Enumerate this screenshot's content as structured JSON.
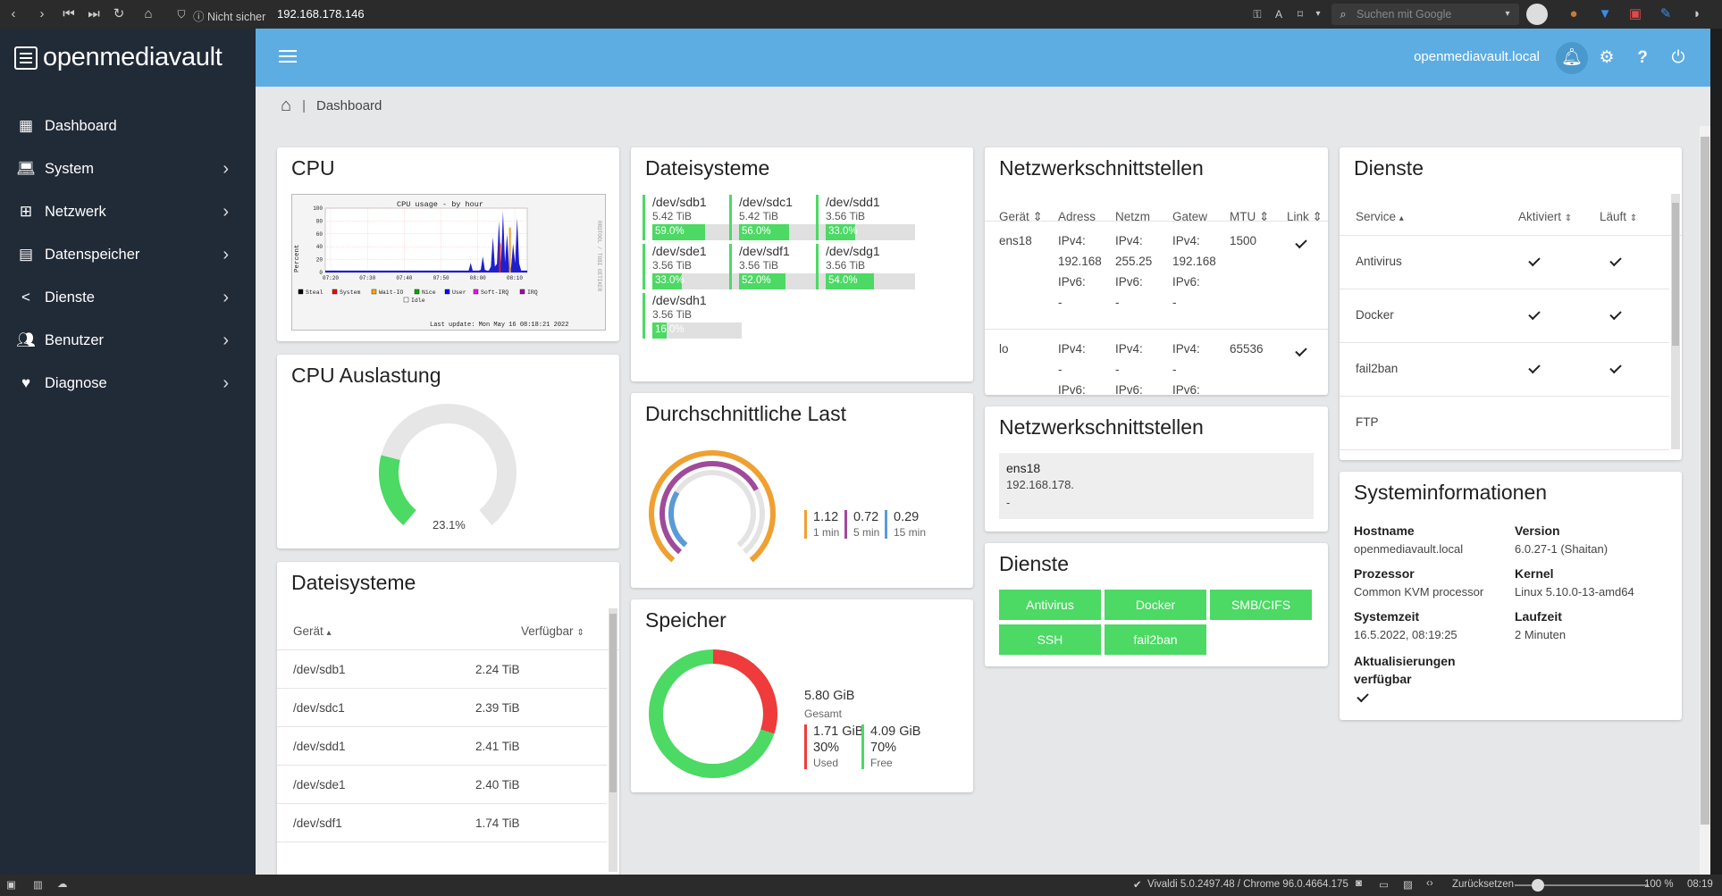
{
  "browser": {
    "security_label": "Nicht sicher",
    "url": "192.168.178.146",
    "search_placeholder": "Suchen mit Google",
    "status_version": "Vivaldi 5.0.2497.48 / Chrome 96.0.4664.175",
    "reset_label": "Zurücksetzen",
    "zoom": "100 %",
    "clock": "08:19"
  },
  "app": {
    "brand": "openmediavault",
    "hostname": "openmediavault.local"
  },
  "sidebar": {
    "items": [
      {
        "label": "Dashboard",
        "icon": "grid-icon"
      },
      {
        "label": "System",
        "icon": "laptop-icon"
      },
      {
        "label": "Netzwerk",
        "icon": "network-icon"
      },
      {
        "label": "Datenspeicher",
        "icon": "storage-icon"
      },
      {
        "label": "Dienste",
        "icon": "share-icon"
      },
      {
        "label": "Benutzer",
        "icon": "users-icon"
      },
      {
        "label": "Diagnose",
        "icon": "heartbeat-icon"
      }
    ]
  },
  "breadcrumb": {
    "current": "Dashboard"
  },
  "cpu": {
    "title": "CPU",
    "graph_title": "CPU usage - by hour",
    "ylabel": "Percent",
    "yticks": [
      "100",
      "80",
      "60",
      "40",
      "20",
      "0"
    ],
    "xticks": [
      "07:20",
      "07:30",
      "07:40",
      "07:50",
      "08:00",
      "08:10"
    ],
    "legend": [
      "Steal",
      "System",
      "Wait-IO",
      "Nice",
      "User",
      "Soft-IRQ",
      "IRQ",
      "Idle"
    ],
    "legend_colors": [
      "#000000",
      "#ff0000",
      "#ffaa00",
      "#00aa00",
      "#0000ff",
      "#ff00ff",
      "#aa00aa",
      "#ffffff"
    ],
    "last_update": "Last update: Mon May 16 08:18:21 2022",
    "side_label": "RRDTOOL / TOBI OETIKER"
  },
  "cpu_load": {
    "title": "CPU Auslastung",
    "value": "23.1%",
    "fraction": 0.231
  },
  "fs_table": {
    "title": "Dateisysteme",
    "col_device": "Gerät",
    "col_avail": "Verfügbar",
    "rows": [
      {
        "device": "/dev/sdb1",
        "avail": "2.24 TiB"
      },
      {
        "device": "/dev/sdc1",
        "avail": "2.39 TiB"
      },
      {
        "device": "/dev/sdd1",
        "avail": "2.41 TiB"
      },
      {
        "device": "/dev/sde1",
        "avail": "2.40 TiB"
      },
      {
        "device": "/dev/sdf1",
        "avail": "1.74 TiB"
      }
    ]
  },
  "fs_tiles": {
    "title": "Dateisysteme",
    "items": [
      {
        "device": "/dev/sdb1",
        "size": "5.42 TiB",
        "pct": "59.0%",
        "fraction": 0.59
      },
      {
        "device": "/dev/sdc1",
        "size": "5.42 TiB",
        "pct": "56.0%",
        "fraction": 0.56
      },
      {
        "device": "/dev/sdd1",
        "size": "3.56 TiB",
        "pct": "33.0%",
        "fraction": 0.33
      },
      {
        "device": "/dev/sde1",
        "size": "3.56 TiB",
        "pct": "33.0%",
        "fraction": 0.33
      },
      {
        "device": "/dev/sdf1",
        "size": "3.56 TiB",
        "pct": "52.0%",
        "fraction": 0.52
      },
      {
        "device": "/dev/sdg1",
        "size": "3.56 TiB",
        "pct": "54.0%",
        "fraction": 0.54
      },
      {
        "device": "/dev/sdh1",
        "size": "3.56 TiB",
        "pct": "16.0%",
        "fraction": 0.16
      }
    ]
  },
  "load": {
    "title": "Durchschnittliche Last",
    "values": [
      {
        "value": "1.12",
        "label": "1 min",
        "color": "#f0a030"
      },
      {
        "value": "0.72",
        "label": "5 min",
        "color": "#a04a9a"
      },
      {
        "value": "0.29",
        "label": "15 min",
        "color": "#5b9bd5"
      }
    ]
  },
  "memory": {
    "title": "Speicher",
    "total": "5.80 GiB",
    "total_label": "Gesamt",
    "used": "1.71 GiB",
    "used_pct": "30%",
    "used_label": "Used",
    "free": "4.09 GiB",
    "free_pct": "70%",
    "free_label": "Free",
    "used_fraction": 0.3,
    "used_color": "#ef3b3b",
    "free_color": "#4cd964"
  },
  "net_table": {
    "title": "Netzwerkschnittstellen",
    "cols": [
      "Gerät",
      "Adress",
      "Netzm",
      "Gatew",
      "MTU",
      "Link"
    ],
    "rows": [
      {
        "device": "ens18",
        "addr": [
          "IPv4:",
          "192.168",
          "IPv6:",
          "-"
        ],
        "mask": [
          "IPv4:",
          "255.25",
          "IPv6:",
          "-"
        ],
        "gw": [
          "IPv4:",
          "192.168",
          "IPv6:",
          "-"
        ],
        "mtu": "1500"
      },
      {
        "device": "lo",
        "addr": [
          "IPv4:",
          "-",
          "IPv6:",
          "-"
        ],
        "mask": [
          "IPv4:",
          "-",
          "IPv6:",
          "-"
        ],
        "gw": [
          "IPv4:",
          "-",
          "IPv6:",
          "-"
        ],
        "mtu": "65536"
      }
    ]
  },
  "net_summary": {
    "title": "Netzwerkschnittstellen",
    "device": "ens18",
    "ip": "192.168.178.",
    "extra": "-"
  },
  "services_buttons": {
    "title": "Dienste",
    "items": [
      "Antivirus",
      "Docker",
      "SMB/CIFS",
      "SSH",
      "fail2ban"
    ]
  },
  "services_table": {
    "title": "Dienste",
    "col_service": "Service",
    "col_enabled": "Aktiviert",
    "col_running": "Läuft",
    "rows": [
      {
        "name": "Antivirus",
        "enabled": true,
        "running": true
      },
      {
        "name": "Docker",
        "enabled": true,
        "running": true
      },
      {
        "name": "fail2ban",
        "enabled": true,
        "running": true
      },
      {
        "name": "FTP",
        "enabled": false,
        "running": false
      }
    ]
  },
  "sysinfo": {
    "title": "Systeminformationen",
    "hostname_label": "Hostname",
    "hostname": "openmediavault.local",
    "version_label": "Version",
    "version": "6.0.27-1 (Shaitan)",
    "cpu_label": "Prozessor",
    "cpu": "Common KVM processor",
    "kernel_label": "Kernel",
    "kernel": "Linux 5.10.0-13-amd64",
    "time_label": "Systemzeit",
    "time": "16.5.2022, 08:19:25",
    "uptime_label": "Laufzeit",
    "uptime": "2 Minuten",
    "updates_label": "Aktualisierungen verfügbar"
  }
}
